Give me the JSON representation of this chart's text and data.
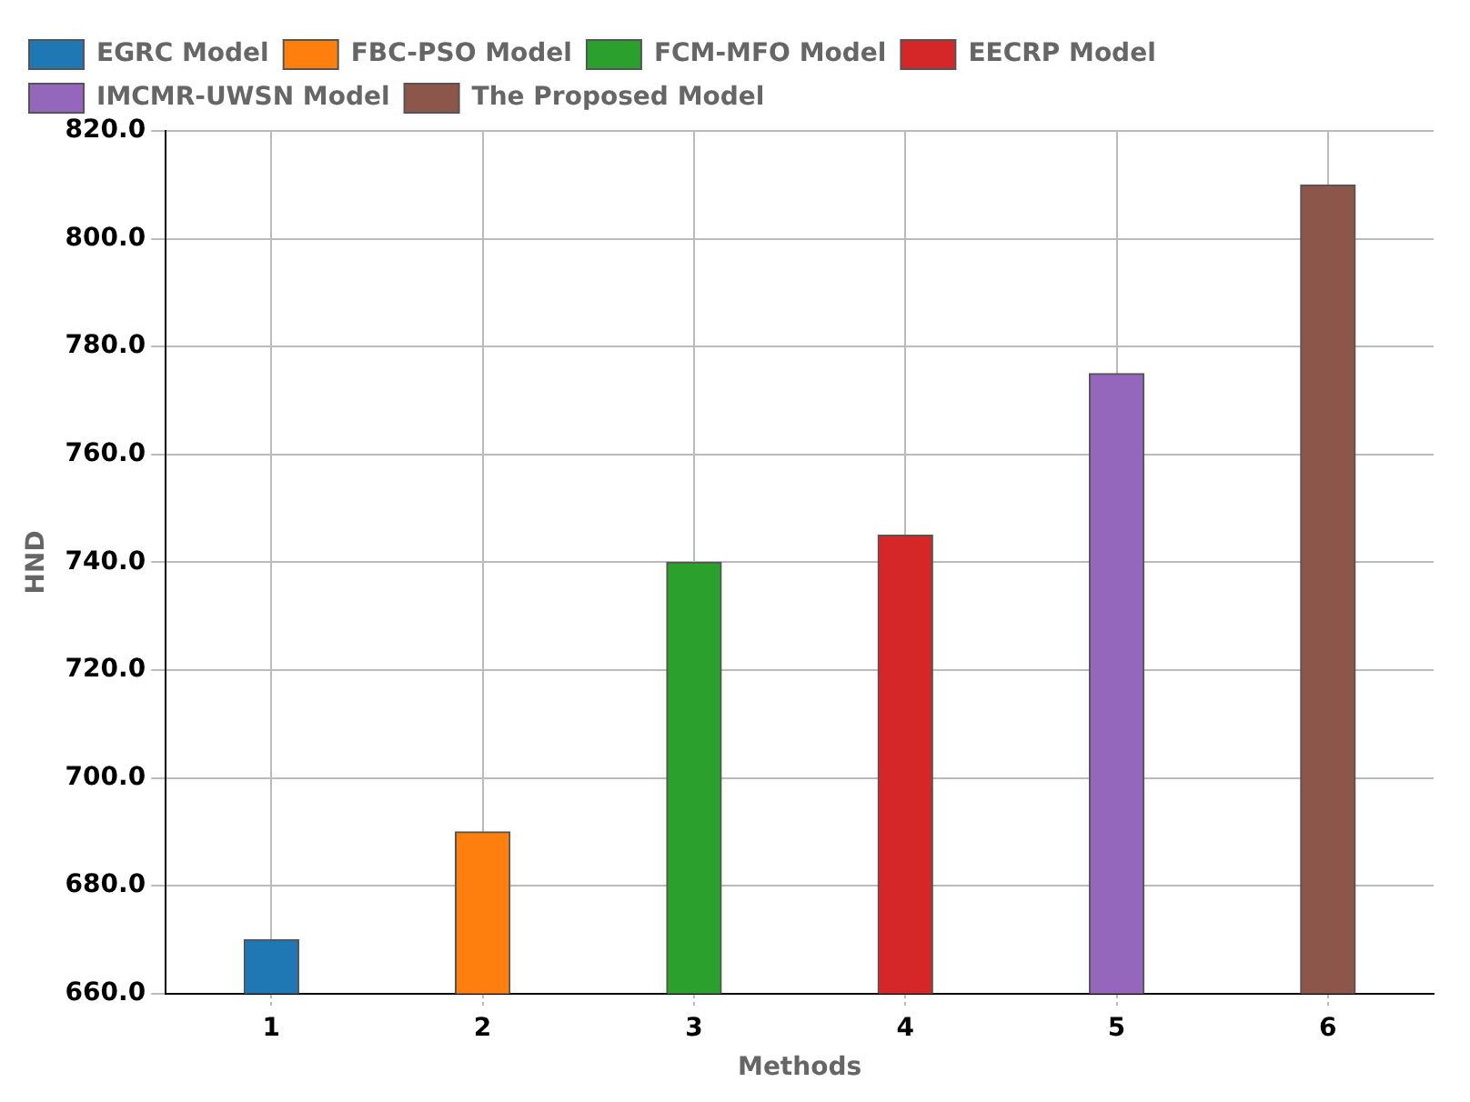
{
  "chart_data": {
    "type": "bar",
    "xlabel": "Methods",
    "ylabel": "HND",
    "categories": [
      "1",
      "2",
      "3",
      "4",
      "5",
      "6"
    ],
    "series": [
      {
        "name": "EGRC Model",
        "color": "#1f77b4",
        "values": [
          670,
          null,
          null,
          null,
          null,
          null
        ]
      },
      {
        "name": "FBC-PSO Model",
        "color": "#ff7f0e",
        "values": [
          null,
          690,
          null,
          null,
          null,
          null
        ]
      },
      {
        "name": "FCM-MFO Model",
        "color": "#2ca02c",
        "values": [
          null,
          null,
          740,
          null,
          null,
          null
        ]
      },
      {
        "name": "EECRP Model",
        "color": "#d62728",
        "values": [
          null,
          null,
          null,
          745,
          null,
          null
        ]
      },
      {
        "name": "IMCMR-UWSN Model",
        "color": "#9467bd",
        "values": [
          null,
          null,
          null,
          null,
          775,
          null
        ]
      },
      {
        "name": "The Proposed Model",
        "color": "#8c564b",
        "values": [
          null,
          null,
          null,
          null,
          null,
          810
        ]
      }
    ],
    "ylim": [
      660,
      820
    ],
    "yticks": [
      {
        "value": 660,
        "label": "660.0"
      },
      {
        "value": 680,
        "label": "680.0"
      },
      {
        "value": 700,
        "label": "700.0"
      },
      {
        "value": 720,
        "label": "720.0"
      },
      {
        "value": 740,
        "label": "740.0"
      },
      {
        "value": 760,
        "label": "760.0"
      },
      {
        "value": 780,
        "label": "780.0"
      },
      {
        "value": 800,
        "label": "800.0"
      },
      {
        "value": 820,
        "label": "820.0"
      }
    ],
    "grid": true,
    "legend": "top left"
  }
}
